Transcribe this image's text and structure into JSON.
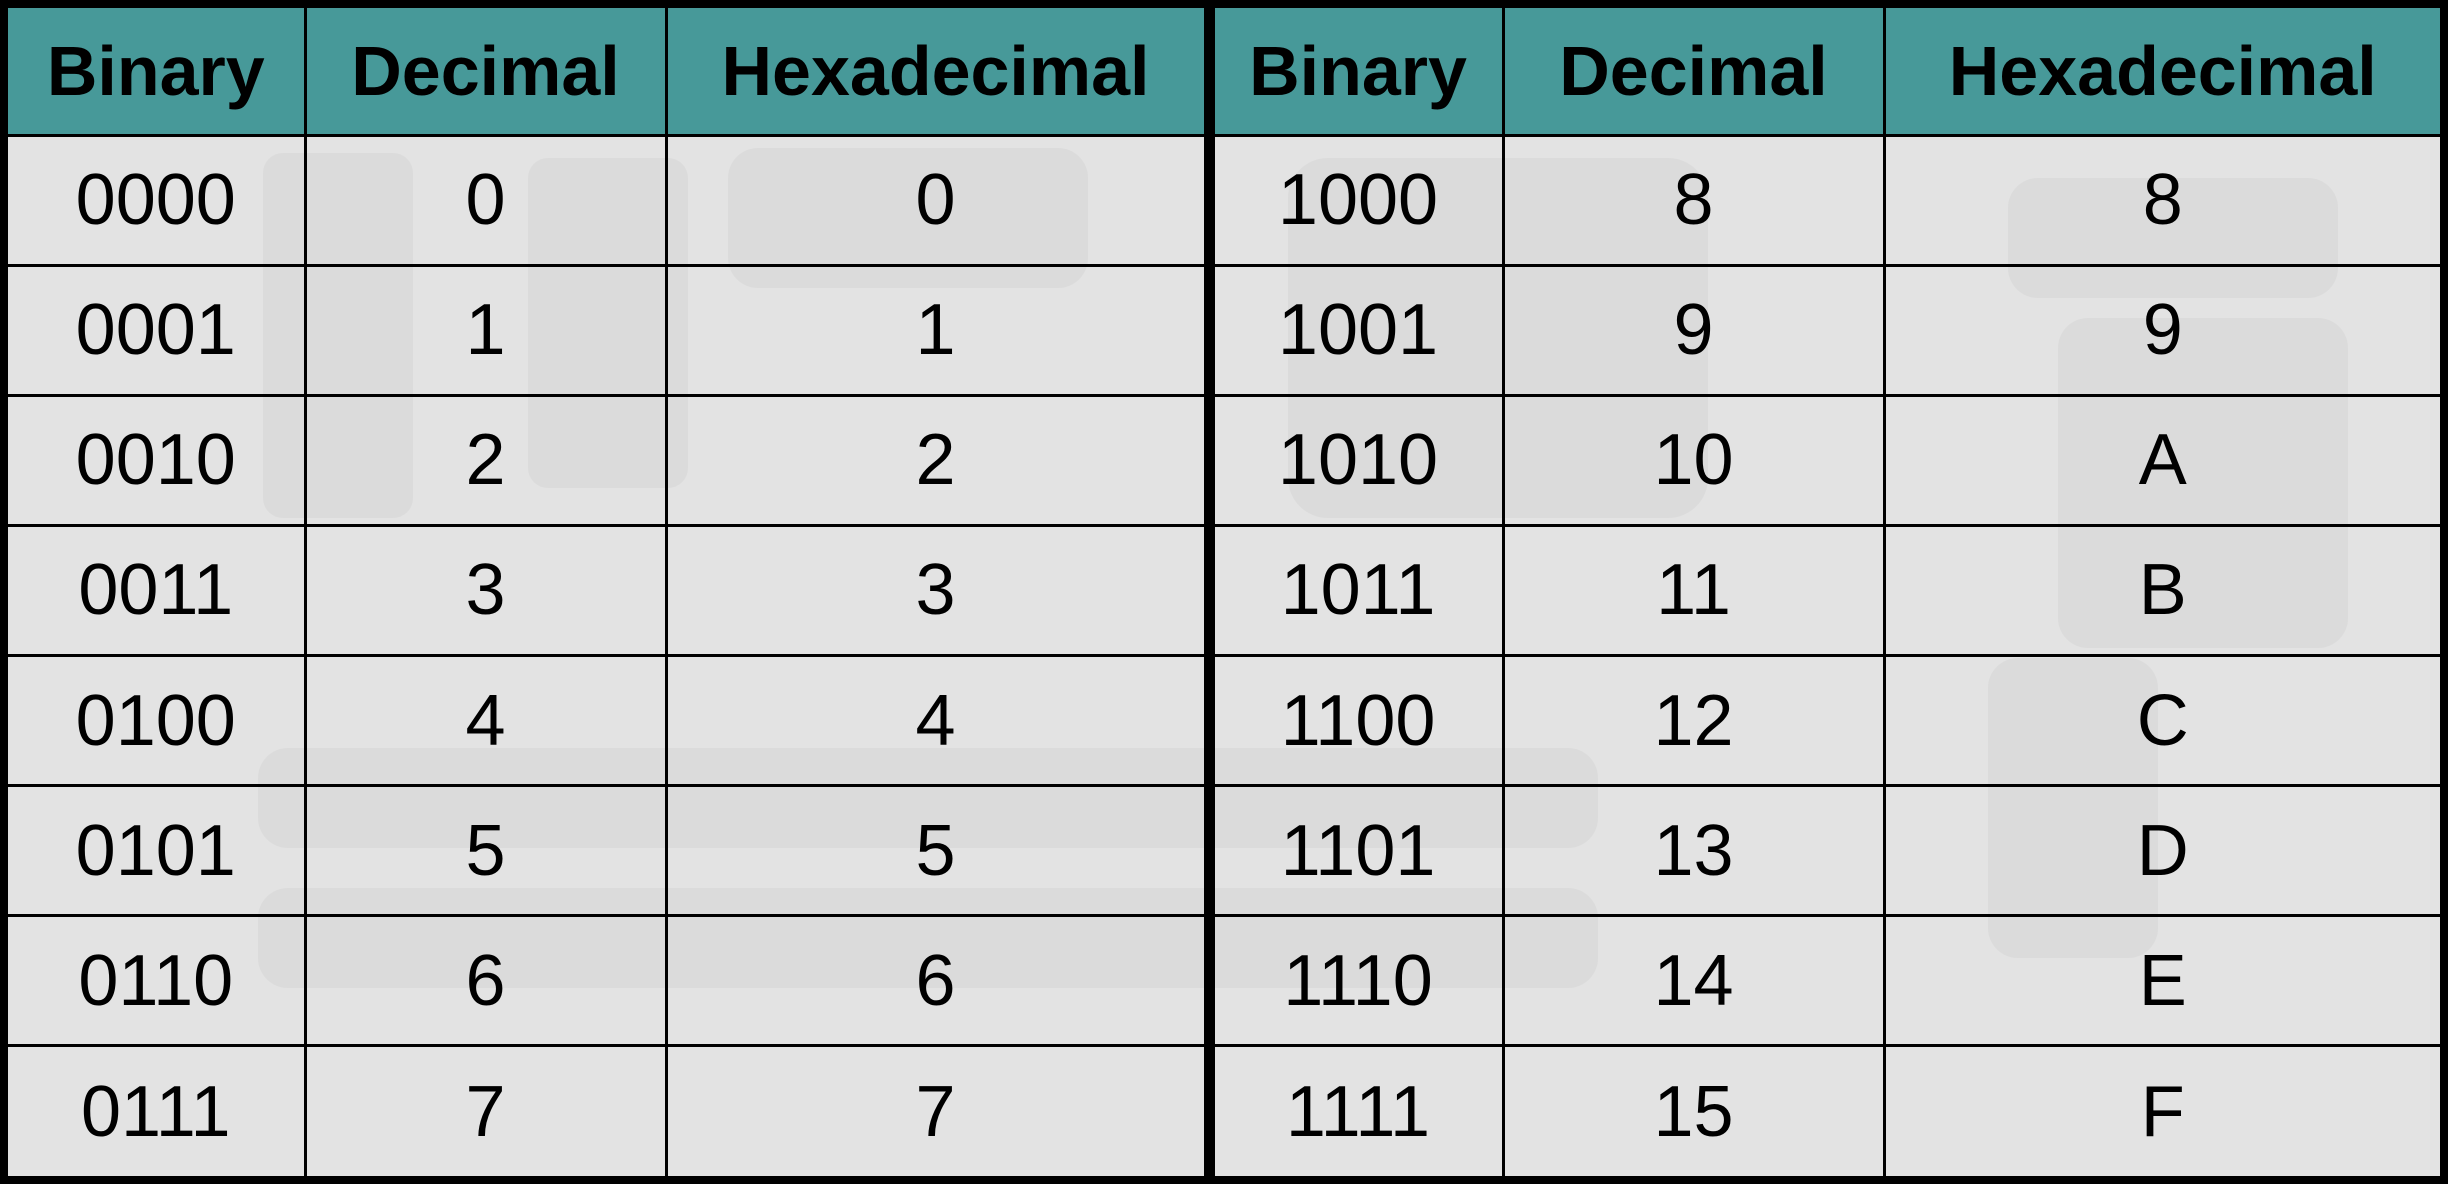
{
  "table": {
    "header_color": "#479999",
    "body_color": "#e3e3e3",
    "headers": [
      "Binary",
      "Decimal",
      "Hexadecimal",
      "Binary",
      "Decimal",
      "Hexadecimal"
    ],
    "rows": [
      [
        "0000",
        "0",
        "0",
        "1000",
        "8",
        "8"
      ],
      [
        "0001",
        "1",
        "1",
        "1001",
        "9",
        "9"
      ],
      [
        "0010",
        "2",
        "2",
        "1010",
        "10",
        "A"
      ],
      [
        "0011",
        "3",
        "3",
        "1011",
        "11",
        "B"
      ],
      [
        "0100",
        "4",
        "4",
        "1100",
        "12",
        "C"
      ],
      [
        "0101",
        "5",
        "5",
        "1101",
        "13",
        "D"
      ],
      [
        "0110",
        "6",
        "6",
        "1110",
        "14",
        "E"
      ],
      [
        "0111",
        "7",
        "7",
        "1111",
        "15",
        "F"
      ]
    ]
  }
}
